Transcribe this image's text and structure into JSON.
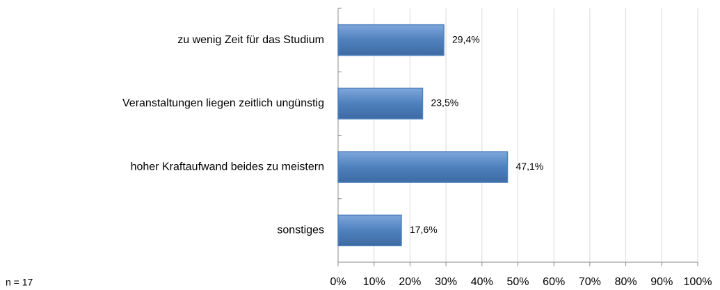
{
  "chart_data": {
    "type": "bar",
    "orientation": "horizontal",
    "categories": [
      "zu wenig Zeit für das Studium",
      "Veranstaltungen liegen zeitlich ungünstig",
      "hoher Kraftaufwand beides zu meistern",
      "sonstiges"
    ],
    "values": [
      29.4,
      23.5,
      47.1,
      17.6
    ],
    "value_labels": [
      "29,4%",
      "23,5%",
      "47,1%",
      "17,6%"
    ],
    "color": "#4f81bd",
    "xlim": [
      0,
      100
    ],
    "xticks": [
      {
        "value": 0,
        "label": "0%"
      },
      {
        "value": 10,
        "label": "10%"
      },
      {
        "value": 20,
        "label": "20%"
      },
      {
        "value": 30,
        "label": "30%"
      },
      {
        "value": 40,
        "label": "40%"
      },
      {
        "value": 50,
        "label": "50%"
      },
      {
        "value": 60,
        "label": "60%"
      },
      {
        "value": 70,
        "label": "70%"
      },
      {
        "value": 80,
        "label": "80%"
      },
      {
        "value": 90,
        "label": "90%"
      },
      {
        "value": 100,
        "label": "100%"
      }
    ],
    "grid": true,
    "annotation": "n = 17"
  }
}
